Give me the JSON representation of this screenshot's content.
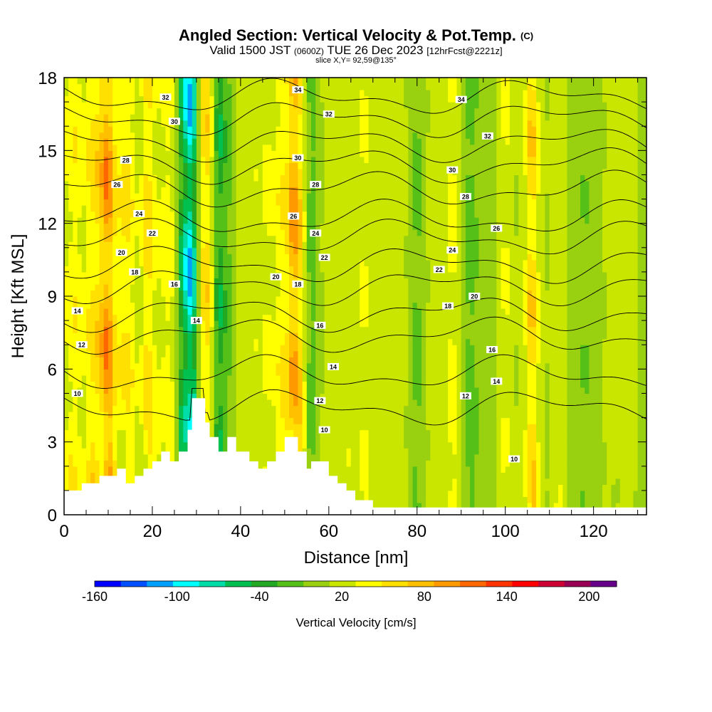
{
  "chart_data": {
    "type": "heatmap",
    "title": "Angled Section: Vertical Velocity & Pot.Temp.",
    "title_suffix": "(C)",
    "subtitle_parts": [
      "Valid 1500 JST",
      "(0600Z)",
      "TUE 26 Dec 2023",
      "[12hrFcst@2221z]"
    ],
    "slice_label": "slice X,Y= 92,59@135°",
    "xlabel": "Distance [nm]",
    "ylabel": "Height [Kft MSL]",
    "xlim": [
      0,
      132
    ],
    "ylim": [
      0,
      18
    ],
    "x_ticks": [
      0,
      20,
      40,
      60,
      80,
      100,
      120
    ],
    "y_ticks": [
      0,
      3,
      6,
      9,
      12,
      15,
      18
    ],
    "colorbar": {
      "label": "Vertical Velocity [cm/s]",
      "tick_labels": [
        "-160",
        "-100",
        "-40",
        "20",
        "80",
        "140",
        "200"
      ],
      "tick_values": [
        -160,
        -100,
        -40,
        20,
        80,
        140,
        200
      ],
      "range": [
        -160,
        220
      ],
      "step": 20,
      "colors": [
        "#0000ff",
        "#0050ff",
        "#00a0ff",
        "#00ffff",
        "#00dda8",
        "#00c050",
        "#22a822",
        "#55c018",
        "#99d010",
        "#c8e600",
        "#ffff00",
        "#ffe000",
        "#ffc000",
        "#ff9900",
        "#ff6600",
        "#ff3300",
        "#ff0000",
        "#cc0033",
        "#990055",
        "#660088"
      ]
    },
    "velocity_columns": [
      {
        "x": 1,
        "w": 0.4
      },
      {
        "x": 3,
        "w": 0.5
      },
      {
        "x": 6,
        "w": 0.6
      },
      {
        "x": 8,
        "w": 0.6
      },
      {
        "x": 10,
        "w": 1.4
      },
      {
        "x": 13,
        "w": 0.5
      },
      {
        "x": 15,
        "w": 0.6
      },
      {
        "x": 19,
        "w": 0.9
      },
      {
        "x": 22,
        "w": 0.3
      },
      {
        "x": 24,
        "w": 0.5
      },
      {
        "x": 27,
        "w": -0.9
      },
      {
        "x": 29,
        "w": -1.6
      },
      {
        "x": 31,
        "w": 0.6
      },
      {
        "x": 33,
        "w": 0.8
      },
      {
        "x": 35,
        "w": -1.0
      },
      {
        "x": 38,
        "w": -0.4
      },
      {
        "x": 40,
        "w": 0.3
      },
      {
        "x": 43,
        "w": 0.3
      },
      {
        "x": 46,
        "w": 0.4
      },
      {
        "x": 49,
        "w": 0.6
      },
      {
        "x": 52,
        "w": 1.3
      },
      {
        "x": 54,
        "w": 0.5
      },
      {
        "x": 56,
        "w": -0.6
      },
      {
        "x": 60,
        "w": 0.2
      },
      {
        "x": 64,
        "w": 0.3
      },
      {
        "x": 68,
        "w": 0.4
      },
      {
        "x": 72,
        "w": 0.3
      },
      {
        "x": 76,
        "w": 0.2
      },
      {
        "x": 80,
        "w": -0.4
      },
      {
        "x": 84,
        "w": 0.2
      },
      {
        "x": 88,
        "w": 0.5
      },
      {
        "x": 92,
        "w": -0.5
      },
      {
        "x": 95,
        "w": -0.2
      },
      {
        "x": 100,
        "w": 0.4
      },
      {
        "x": 106,
        "w": 1.0
      },
      {
        "x": 112,
        "w": 0.3
      },
      {
        "x": 118,
        "w": -0.3
      },
      {
        "x": 124,
        "w": 0.1
      },
      {
        "x": 128,
        "w": 0.2
      }
    ],
    "terrain": [
      [
        0,
        1.0
      ],
      [
        4,
        1.0
      ],
      [
        4,
        1.3
      ],
      [
        8,
        1.3
      ],
      [
        8,
        1.6
      ],
      [
        12,
        1.6
      ],
      [
        12,
        1.9
      ],
      [
        14,
        1.9
      ],
      [
        14,
        1.3
      ],
      [
        16,
        1.3
      ],
      [
        16,
        1.6
      ],
      [
        18,
        1.6
      ],
      [
        18,
        1.9
      ],
      [
        20,
        1.9
      ],
      [
        20,
        2.2
      ],
      [
        22,
        2.2
      ],
      [
        22,
        2.6
      ],
      [
        24,
        2.6
      ],
      [
        24,
        2.2
      ],
      [
        26,
        2.2
      ],
      [
        26,
        2.6
      ],
      [
        28,
        2.6
      ],
      [
        28,
        3.5
      ],
      [
        29,
        3.5
      ],
      [
        29,
        4.8
      ],
      [
        32,
        4.8
      ],
      [
        32,
        3.8
      ],
      [
        33,
        3.8
      ],
      [
        33,
        3.2
      ],
      [
        35,
        3.2
      ],
      [
        35,
        2.6
      ],
      [
        37,
        2.6
      ],
      [
        37,
        3.2
      ],
      [
        39,
        3.2
      ],
      [
        39,
        2.6
      ],
      [
        42,
        2.6
      ],
      [
        42,
        2.2
      ],
      [
        44,
        2.2
      ],
      [
        44,
        1.9
      ],
      [
        46,
        1.9
      ],
      [
        46,
        2.2
      ],
      [
        48,
        2.2
      ],
      [
        48,
        2.6
      ],
      [
        50,
        2.6
      ],
      [
        50,
        3.2
      ],
      [
        53,
        3.2
      ],
      [
        53,
        2.6
      ],
      [
        55,
        2.6
      ],
      [
        55,
        1.9
      ],
      [
        56,
        1.9
      ],
      [
        56,
        2.2
      ],
      [
        60,
        2.2
      ],
      [
        60,
        1.6
      ],
      [
        62,
        1.6
      ],
      [
        62,
        1.3
      ],
      [
        64,
        1.3
      ],
      [
        64,
        1.0
      ],
      [
        66,
        1.0
      ],
      [
        66,
        0.6
      ],
      [
        70,
        0.6
      ],
      [
        70,
        0.3
      ],
      [
        72,
        0.3
      ],
      [
        72,
        0.3
      ],
      [
        132,
        0.3
      ]
    ],
    "theta_contours": [
      {
        "label": "10",
        "base": 4.4,
        "labels_at": [
          {
            "x": 3,
            "y": 5.0
          },
          {
            "x": 59,
            "y": 3.5
          },
          {
            "x": 102,
            "y": 2.3
          }
        ]
      },
      {
        "label": "12",
        "base": 5.8,
        "labels_at": [
          {
            "x": 4,
            "y": 7.0
          },
          {
            "x": 58,
            "y": 4.7
          },
          {
            "x": 91,
            "y": 4.9
          }
        ]
      },
      {
        "label": "14",
        "base": 7.4,
        "labels_at": [
          {
            "x": 3,
            "y": 8.4
          },
          {
            "x": 30,
            "y": 8.0
          },
          {
            "x": 61,
            "y": 6.1
          },
          {
            "x": 98,
            "y": 5.5
          }
        ]
      },
      {
        "label": "16",
        "base": 8.3,
        "labels_at": [
          {
            "x": 25,
            "y": 9.5
          },
          {
            "x": 58,
            "y": 7.8
          },
          {
            "x": 97,
            "y": 6.8
          }
        ]
      },
      {
        "label": "18",
        "base": 9.4,
        "labels_at": [
          {
            "x": 16,
            "y": 10.0
          },
          {
            "x": 53,
            "y": 9.5
          },
          {
            "x": 87,
            "y": 8.6
          }
        ]
      },
      {
        "label": "20",
        "base": 10.3,
        "labels_at": [
          {
            "x": 13,
            "y": 10.8
          },
          {
            "x": 48,
            "y": 9.8
          },
          {
            "x": 93,
            "y": 9.0
          }
        ]
      },
      {
        "label": "22",
        "base": 11.4,
        "labels_at": [
          {
            "x": 20,
            "y": 11.6
          },
          {
            "x": 59,
            "y": 10.6
          },
          {
            "x": 85,
            "y": 10.1
          }
        ]
      },
      {
        "label": "24",
        "base": 12.2,
        "labels_at": [
          {
            "x": 17,
            "y": 12.4
          },
          {
            "x": 57,
            "y": 11.6
          },
          {
            "x": 88,
            "y": 10.9
          }
        ]
      },
      {
        "label": "26",
        "base": 13.4,
        "labels_at": [
          {
            "x": 12,
            "y": 13.6
          },
          {
            "x": 52,
            "y": 12.3
          },
          {
            "x": 98,
            "y": 11.8
          }
        ]
      },
      {
        "label": "28",
        "base": 14.4,
        "labels_at": [
          {
            "x": 14,
            "y": 14.6
          },
          {
            "x": 57,
            "y": 13.6
          },
          {
            "x": 91,
            "y": 13.1
          }
        ]
      },
      {
        "label": "30",
        "base": 15.3,
        "labels_at": [
          {
            "x": 25,
            "y": 16.2
          },
          {
            "x": 53,
            "y": 14.7
          },
          {
            "x": 88,
            "y": 14.2
          }
        ]
      },
      {
        "label": "32",
        "base": 16.3,
        "labels_at": [
          {
            "x": 23,
            "y": 17.2
          },
          {
            "x": 60,
            "y": 16.5
          },
          {
            "x": 96,
            "y": 15.6
          }
        ]
      },
      {
        "label": "34",
        "base": 17.2,
        "labels_at": [
          {
            "x": 53,
            "y": 17.5
          },
          {
            "x": 90,
            "y": 17.1
          }
        ]
      }
    ]
  }
}
